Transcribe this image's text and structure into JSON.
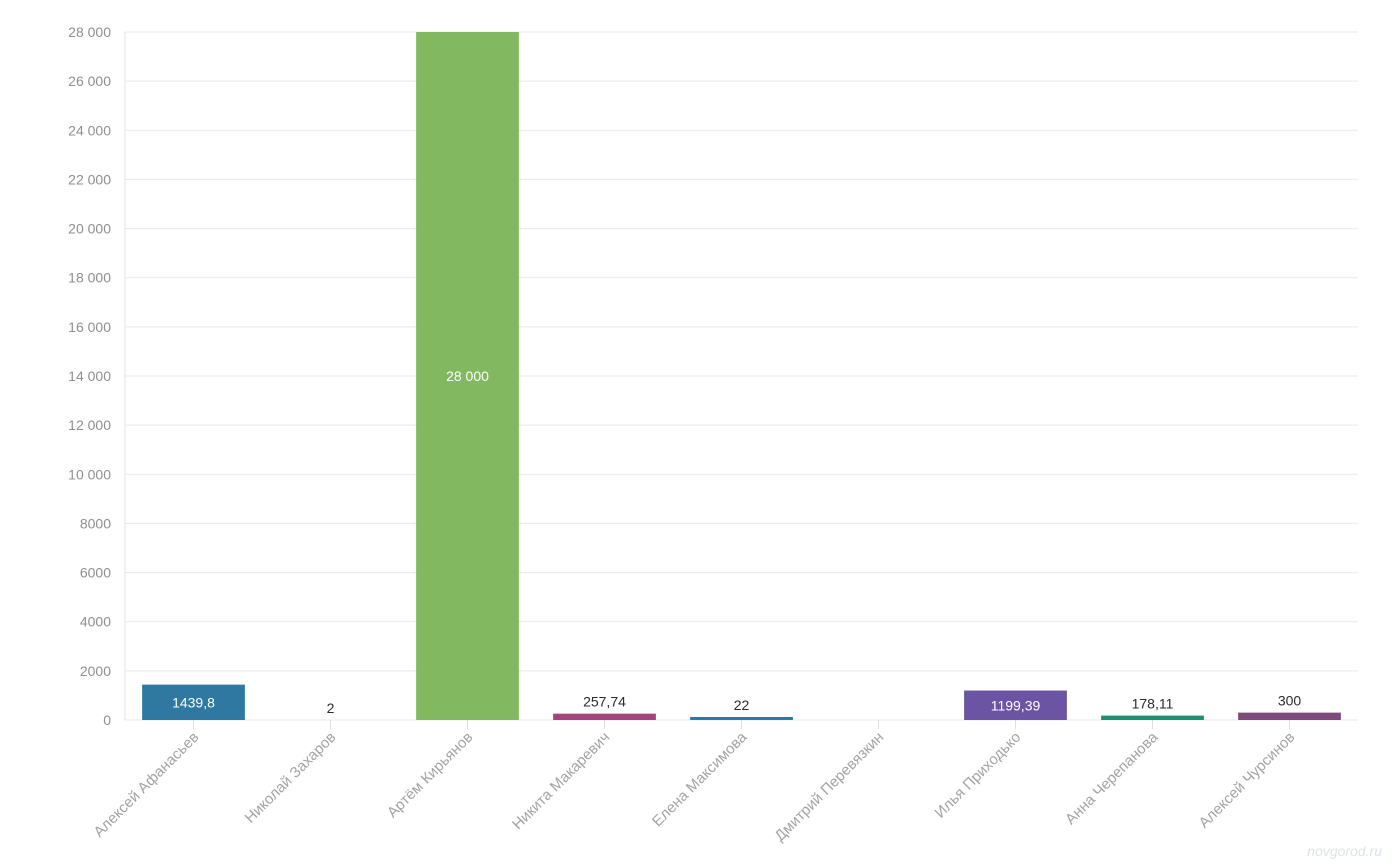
{
  "chart_data": {
    "type": "bar",
    "categories": [
      "Алексей Афанасьев",
      "Николай Захаров",
      "Артём Кирьянов",
      "Никита Макаревич",
      "Елена Максимова",
      "Дмитрий Перевязкин",
      "Илья Приходько",
      "Анна Черепанова",
      "Алексей Чурсинов"
    ],
    "values": [
      1439.8,
      2,
      28000,
      257.74,
      22,
      null,
      1199.39,
      178.11,
      300
    ],
    "value_labels": [
      "1439,8",
      "2",
      "28 000",
      "257,74",
      "22",
      "",
      "1199,39",
      "178,11",
      "300"
    ],
    "colors": [
      "#2e78a1",
      "#2e78a1",
      "#82b960",
      "#a8427d",
      "#2e78a1",
      "#2e78a1",
      "#6b54a3",
      "#1a9170",
      "#7e4a7a"
    ],
    "yticks": [
      0,
      2000,
      4000,
      6000,
      8000,
      10000,
      12000,
      14000,
      16000,
      18000,
      20000,
      22000,
      24000,
      26000,
      28000
    ],
    "ytick_labels": [
      "0",
      "2000",
      "4000",
      "6000",
      "8000",
      "10 000",
      "12 000",
      "14 000",
      "16 000",
      "18 000",
      "20 000",
      "22 000",
      "24 000",
      "26 000",
      "28 000"
    ],
    "ylim": [
      0,
      28000
    ],
    "grid": true,
    "title": "",
    "xlabel": "",
    "ylabel": ""
  },
  "watermark": "novgorod.ru"
}
